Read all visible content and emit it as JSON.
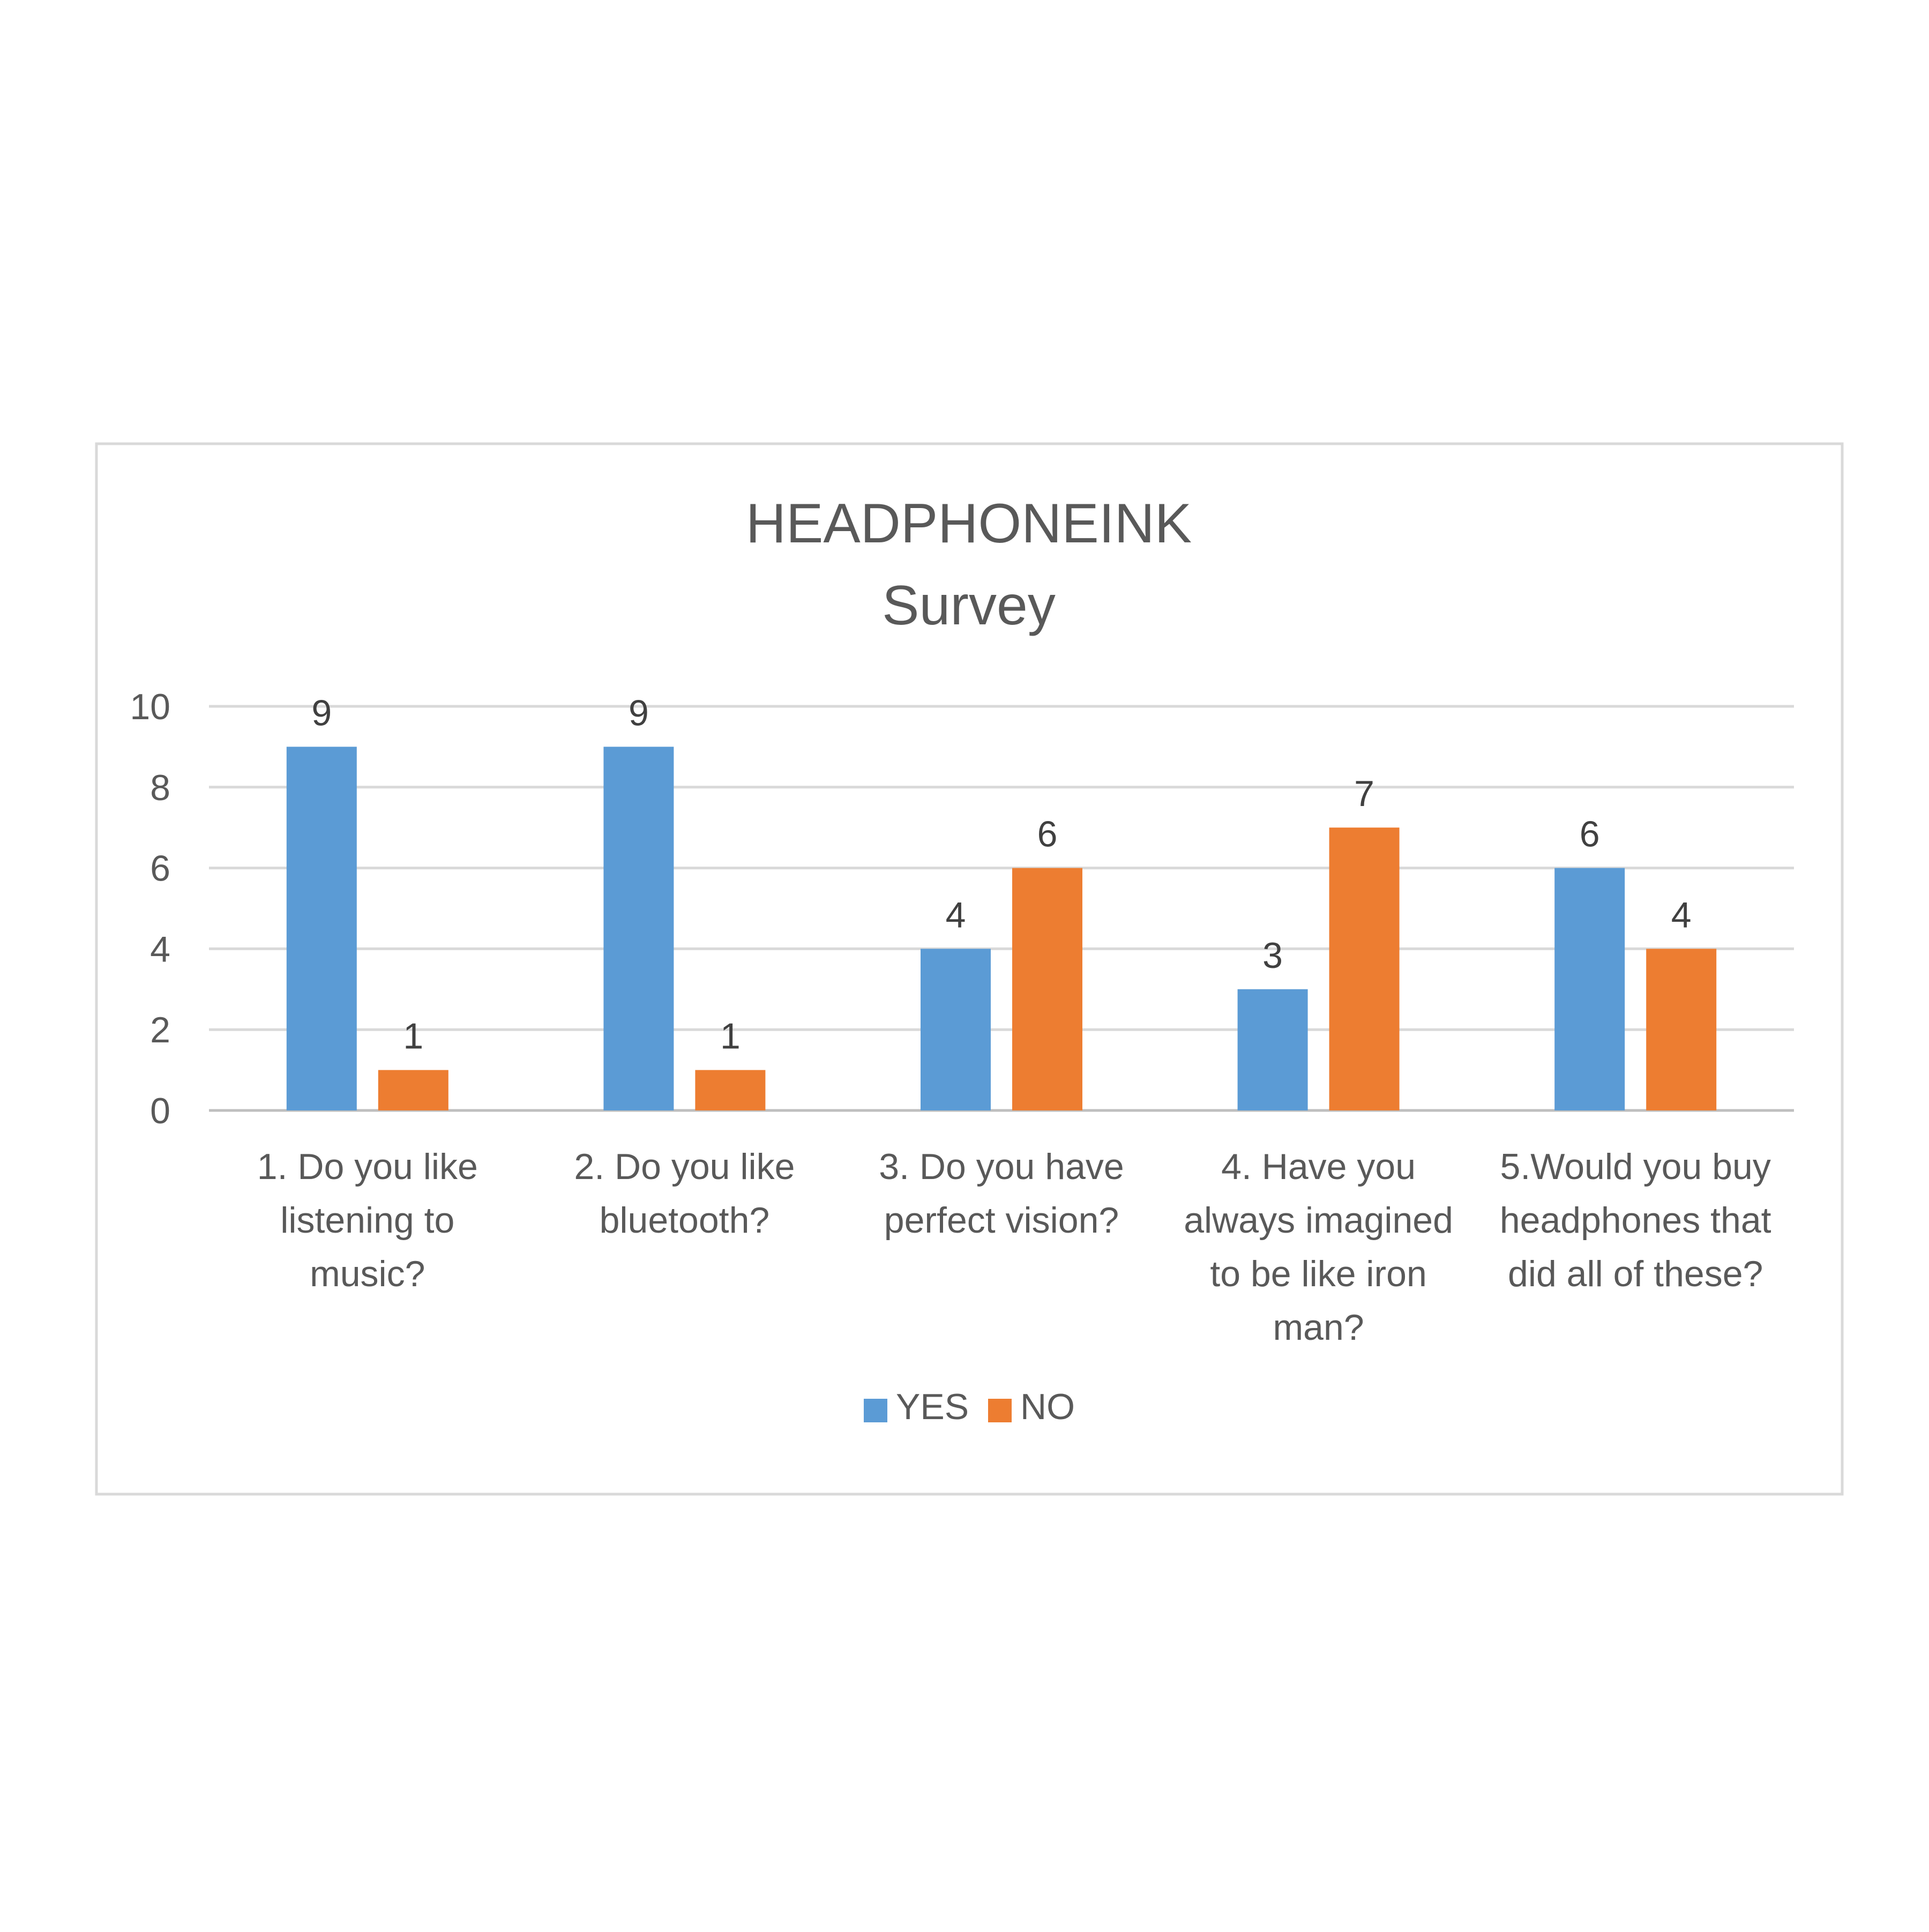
{
  "chart_data": {
    "type": "bar",
    "title_lines": [
      "HEADPHONEINK",
      "Survey"
    ],
    "categories": [
      [
        "1. Do you like",
        "listening to",
        "music?"
      ],
      [
        "2. Do you like",
        "bluetooth?"
      ],
      [
        "3. Do you have",
        "perfect vision?"
      ],
      [
        "4. Have you",
        "always imagined",
        "to be like iron",
        "man?"
      ],
      [
        "5.Would you buy",
        "headphones that",
        "did all of these?"
      ]
    ],
    "series": [
      {
        "name": "YES",
        "color": "#5b9bd5",
        "values": [
          9,
          9,
          4,
          3,
          6
        ]
      },
      {
        "name": "NO",
        "color": "#ed7d31",
        "values": [
          1,
          1,
          6,
          7,
          4
        ]
      }
    ],
    "ylim": [
      0,
      10
    ],
    "yticks": [
      "0",
      "2",
      "4",
      "6",
      "8",
      "10"
    ],
    "grid": true,
    "legend_position": "bottom",
    "data_labels": true
  }
}
